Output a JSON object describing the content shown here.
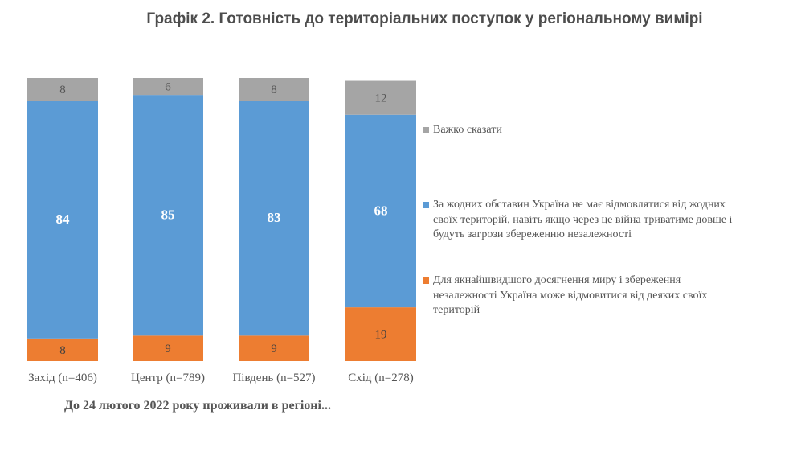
{
  "chart_data": {
    "type": "bar",
    "stacked": true,
    "title": "Графік 2. Готовність до територіальних поступок у регіональному вимірі",
    "xlabel": "До 24 лютого 2022 року проживали в регіоні...",
    "ylabel": "",
    "ylim": [
      0,
      100
    ],
    "grid": false,
    "legend_position": "right",
    "categories": [
      "Захід (n=406)",
      "Центр (n=789)",
      "Південь (n=527)",
      "Схід (n=278)"
    ],
    "series": [
      {
        "name": "Для якнайшвидшого досягнення миру і збереження незалежності Україна може відмовитися від деяких своїх територій",
        "color": "#ed7d31",
        "values": [
          8,
          9,
          9,
          19
        ]
      },
      {
        "name": "За жодних обставин Україна не має відмовлятися від жодних своїх територій, навіть якщо через це війна триватиме довше і будуть загрози збереженню незалежності",
        "color": "#5b9bd5",
        "values": [
          84,
          85,
          83,
          68
        ]
      },
      {
        "name": "Важко сказати",
        "color": "#a5a5a5",
        "values": [
          8,
          6,
          8,
          12
        ]
      }
    ]
  }
}
